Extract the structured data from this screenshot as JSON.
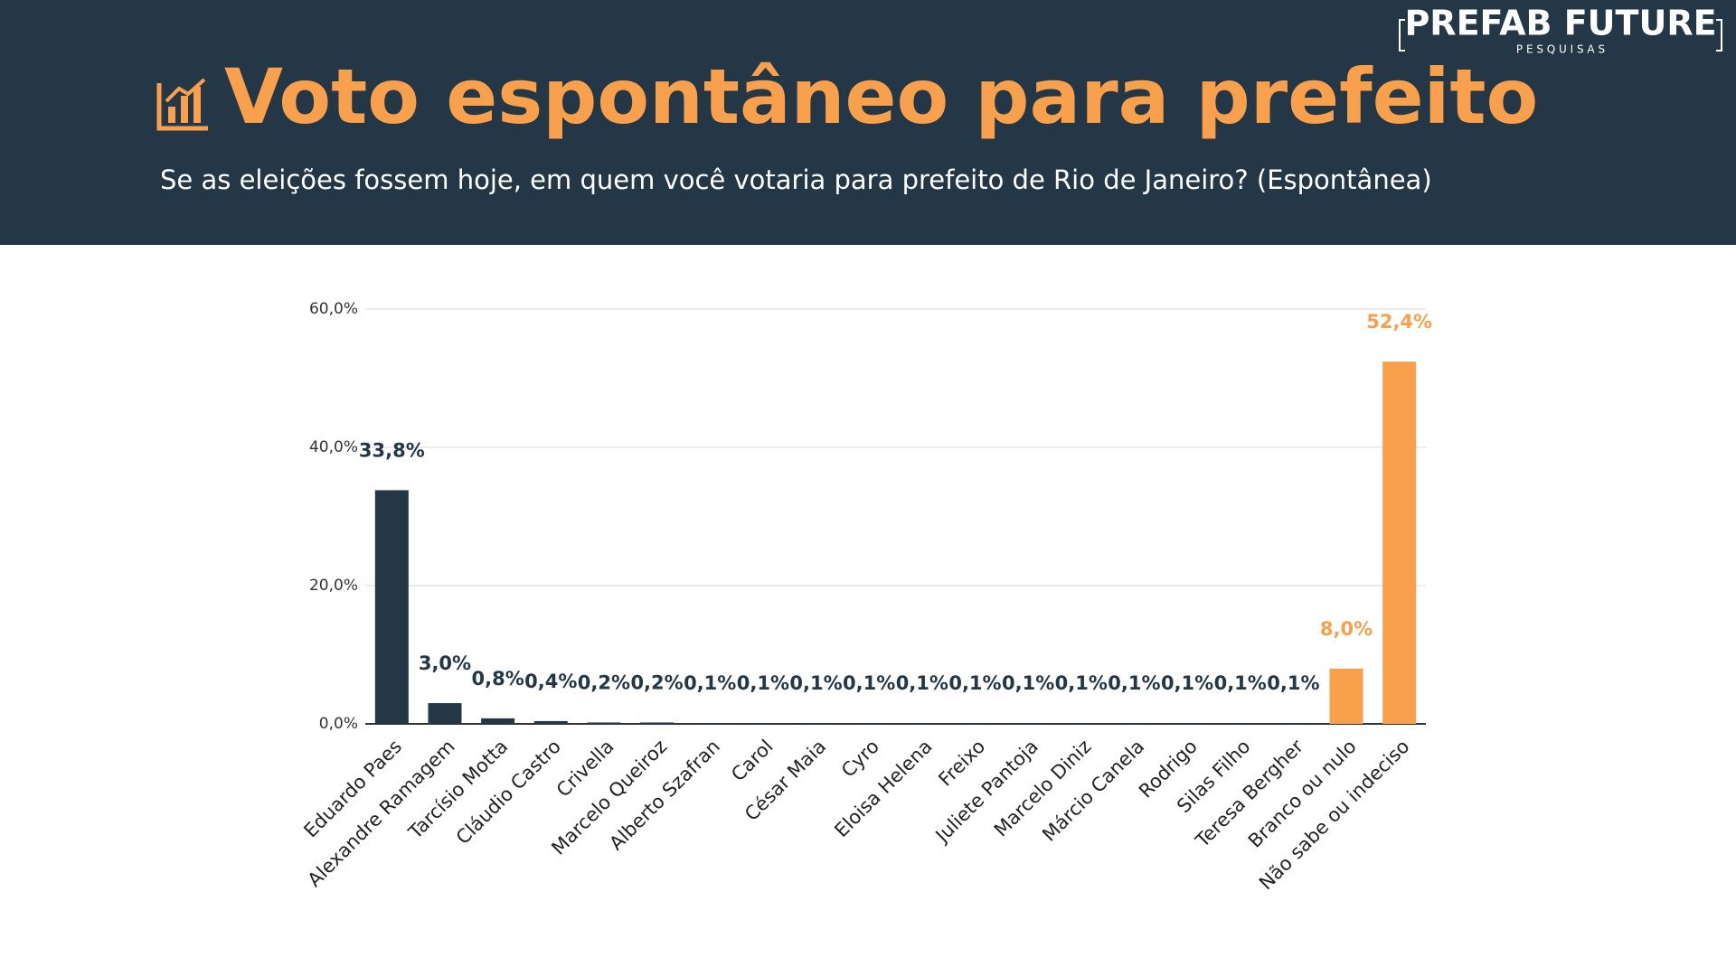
{
  "logo": {
    "name": "PREFAB FUTURE",
    "tagline": "P E S Q U I S A S"
  },
  "chart_data": {
    "type": "bar",
    "title": "Voto espontâneo para prefeito",
    "subtitle": "Se as eleições fossem hoje, em quem você votaria para prefeito de Rio de Janeiro? (Espontânea)",
    "categories": [
      "Eduardo Paes",
      "Alexandre Ramagem",
      "Tarcísio Motta",
      "Cláudio Castro",
      "Crivella",
      "Marcelo Queiroz",
      "Alberto Szafran",
      "Carol",
      "César Maia",
      "Cyro",
      "Eloisa Helena",
      "Freixo",
      "Juliete Pantoja",
      "Marcelo Diniz",
      "Márcio Canela",
      "Rodrigo",
      "Silas Filho",
      "Teresa Bergher",
      "Branco ou nulo",
      "Não sabe ou indeciso"
    ],
    "values": [
      33.8,
      3.0,
      0.8,
      0.4,
      0.2,
      0.2,
      0.1,
      0.1,
      0.1,
      0.1,
      0.1,
      0.1,
      0.1,
      0.1,
      0.1,
      0.1,
      0.1,
      0.1,
      8.0,
      52.4
    ],
    "value_labels": [
      "33,8%",
      "3,0%",
      "0,8%",
      "0,4%",
      "0,2%",
      "0,2%",
      "0,1%",
      "0,1%",
      "0,1%",
      "0,1%",
      "0,1%",
      "0,1%",
      "0,1%",
      "0,1%",
      "0,1%",
      "0,1%",
      "0,1%",
      "0,1%",
      "8,0%",
      "52,4%"
    ],
    "colors": [
      "#243746",
      "#243746",
      "#243746",
      "#243746",
      "#243746",
      "#243746",
      "#243746",
      "#243746",
      "#243746",
      "#243746",
      "#243746",
      "#243746",
      "#243746",
      "#243746",
      "#243746",
      "#243746",
      "#243746",
      "#243746",
      "#f9a04d",
      "#f9a04d"
    ],
    "ylim": [
      0,
      60
    ],
    "yticks": [
      {
        "value": 0,
        "label": "0,0%"
      },
      {
        "value": 20,
        "label": "20,0%"
      },
      {
        "value": 40,
        "label": "40,0%"
      },
      {
        "value": 60,
        "label": "60,0%"
      }
    ],
    "grid": true
  }
}
